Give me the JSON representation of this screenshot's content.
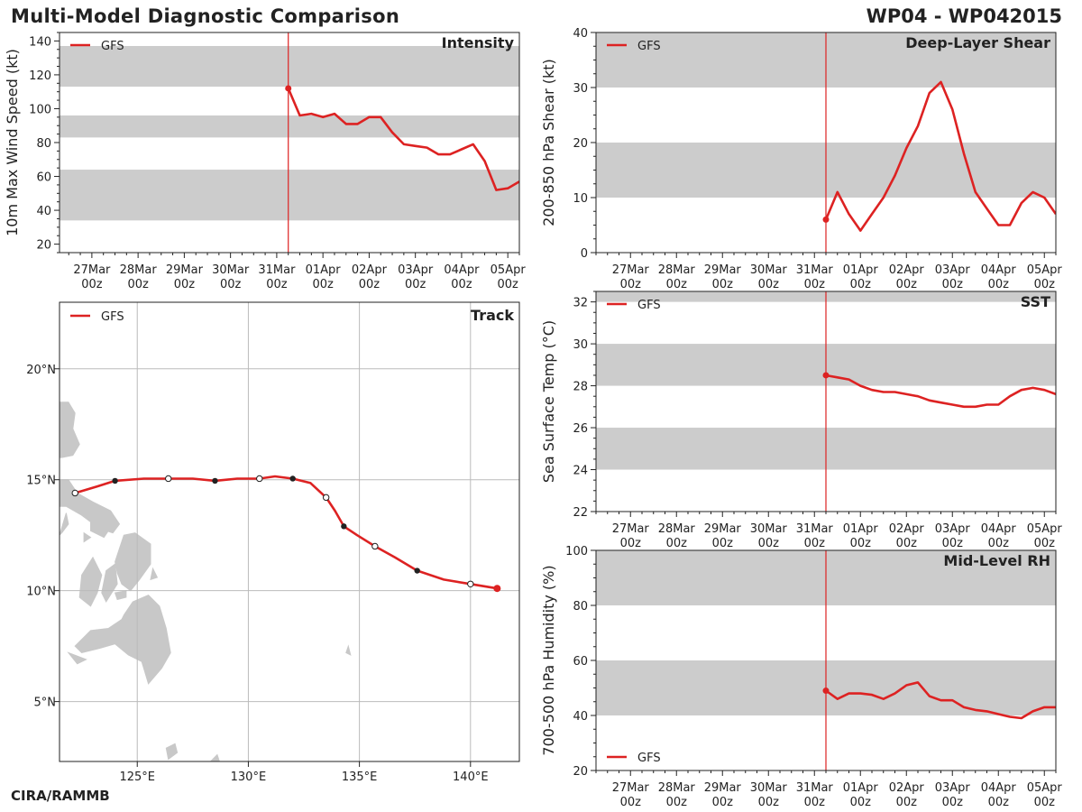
{
  "header": {
    "title": "Multi-Model Diagnostic Comparison",
    "storm": "WP04 - WP042015"
  },
  "footer": {
    "credit": "CIRA/RAMMB"
  },
  "time_axis": {
    "ticks": [
      {
        "day": 0,
        "l1": "27Mar",
        "l2": "00z"
      },
      {
        "day": 1,
        "l1": "28Mar",
        "l2": "00z"
      },
      {
        "day": 2,
        "l1": "29Mar",
        "l2": "00z"
      },
      {
        "day": 3,
        "l1": "30Mar",
        "l2": "00z"
      },
      {
        "day": 4,
        "l1": "31Mar",
        "l2": "00z"
      },
      {
        "day": 5,
        "l1": "01Apr",
        "l2": "00z"
      },
      {
        "day": 6,
        "l1": "02Apr",
        "l2": "00z"
      },
      {
        "day": 7,
        "l1": "03Apr",
        "l2": "00z"
      },
      {
        "day": 8,
        "l1": "04Apr",
        "l2": "00z"
      },
      {
        "day": 9,
        "l1": "05Apr",
        "l2": "00z"
      }
    ]
  },
  "chart_data": [
    {
      "id": "intensity",
      "type": "line",
      "title": "Intensity",
      "ylabel": "10m Max Wind Speed (kt)",
      "xlim": [
        -0.7,
        9.25
      ],
      "ylim": [
        15,
        145
      ],
      "yticks": [
        20,
        40,
        60,
        80,
        100,
        120,
        140
      ],
      "bands": [
        [
          34,
          64
        ],
        [
          83,
          96
        ],
        [
          113,
          137
        ]
      ],
      "init_day": 4.25,
      "legend": "top-left",
      "series": [
        {
          "name": "GFS",
          "color": "#dd2222",
          "x": [
            4.25,
            4.5,
            4.75,
            5.0,
            5.25,
            5.5,
            5.75,
            6.0,
            6.25,
            6.5,
            6.75,
            7.0,
            7.25,
            7.5,
            7.75,
            8.0,
            8.25,
            8.5,
            8.75,
            9.0,
            9.25
          ],
          "y": [
            112,
            96,
            97,
            95,
            97,
            91,
            91,
            95,
            95,
            86,
            79,
            78,
            77,
            73,
            73,
            76,
            79,
            69,
            52,
            53,
            57
          ]
        }
      ]
    },
    {
      "id": "shear",
      "type": "line",
      "title": "Deep-Layer Shear",
      "ylabel": "200-850 hPa Shear (kt)",
      "xlim": [
        -0.75,
        9.25
      ],
      "ylim": [
        0,
        40
      ],
      "yticks": [
        0,
        10,
        20,
        30,
        40
      ],
      "bands": [
        [
          10,
          20
        ],
        [
          30,
          40
        ]
      ],
      "init_day": 4.25,
      "legend": "top-left",
      "series": [
        {
          "name": "GFS",
          "color": "#dd2222",
          "x": [
            4.25,
            4.5,
            4.75,
            5.0,
            5.25,
            5.5,
            5.75,
            6.0,
            6.25,
            6.5,
            6.75,
            7.0,
            7.25,
            7.5,
            7.75,
            8.0,
            8.25,
            8.5,
            8.75,
            9.0,
            9.25
          ],
          "y": [
            6,
            11,
            7,
            4,
            7,
            10,
            14,
            19,
            23,
            29,
            31,
            26,
            18,
            11,
            8,
            5,
            5,
            9,
            11,
            10,
            7
          ]
        }
      ]
    },
    {
      "id": "sst",
      "type": "line",
      "title": "SST",
      "ylabel": "Sea Surface Temp (°C)",
      "xlim": [
        -0.75,
        9.25
      ],
      "ylim": [
        22,
        32.5
      ],
      "yticks": [
        22,
        24,
        26,
        28,
        30,
        32
      ],
      "bands": [
        [
          24,
          26
        ],
        [
          28,
          30
        ],
        [
          32,
          32.5
        ]
      ],
      "init_day": 4.25,
      "legend": "top-left",
      "series": [
        {
          "name": "GFS",
          "color": "#dd2222",
          "x": [
            4.25,
            4.5,
            4.75,
            5.0,
            5.25,
            5.5,
            5.75,
            6.0,
            6.25,
            6.5,
            6.75,
            7.0,
            7.25,
            7.5,
            7.75,
            8.0,
            8.25,
            8.5,
            8.75,
            9.0,
            9.25
          ],
          "y": [
            28.5,
            28.4,
            28.3,
            28.0,
            27.8,
            27.7,
            27.7,
            27.6,
            27.5,
            27.3,
            27.2,
            27.1,
            27.0,
            27.0,
            27.1,
            27.1,
            27.5,
            27.8,
            27.9,
            27.8,
            27.6
          ]
        }
      ]
    },
    {
      "id": "rh",
      "type": "line",
      "title": "Mid-Level RH",
      "ylabel": "700-500 hPa Humidity (%)",
      "xlim": [
        -0.75,
        9.25
      ],
      "ylim": [
        20,
        100
      ],
      "yticks": [
        20,
        40,
        60,
        80,
        100
      ],
      "bands": [
        [
          40,
          60
        ],
        [
          80,
          100
        ]
      ],
      "init_day": 4.25,
      "legend": "bottom-left",
      "series": [
        {
          "name": "GFS",
          "color": "#dd2222",
          "x": [
            4.25,
            4.5,
            4.75,
            5.0,
            5.25,
            5.5,
            5.75,
            6.0,
            6.25,
            6.5,
            6.75,
            7.0,
            7.25,
            7.5,
            7.75,
            8.0,
            8.25,
            8.5,
            8.75,
            9.0,
            9.25
          ],
          "y": [
            49,
            46,
            48,
            48,
            47.5,
            46,
            48,
            51,
            52,
            47,
            45.5,
            45.5,
            43,
            42,
            41.5,
            40.5,
            39.5,
            39,
            41.5,
            43,
            43
          ]
        }
      ]
    },
    {
      "id": "track",
      "type": "scatter",
      "title": "Track",
      "xlim": [
        121.5,
        142.2
      ],
      "ylim": [
        2.3,
        23.0
      ],
      "xticks": [
        125,
        130,
        135,
        140
      ],
      "xticklabels": [
        "125°E",
        "130°E",
        "135°E",
        "140°E"
      ],
      "yticks": [
        5,
        10,
        15,
        20
      ],
      "yticklabels": [
        "5°N",
        "10°N",
        "15°N",
        "20°N"
      ],
      "legend": "top-left",
      "series": [
        {
          "name": "GFS",
          "color": "#dd2222",
          "lon": [
            141.2,
            140.0,
            138.8,
            137.6,
            136.6,
            135.7,
            134.9,
            134.3,
            133.9,
            133.5,
            132.8,
            132.0,
            131.2,
            130.5,
            129.5,
            128.5,
            127.5,
            126.4,
            125.3,
            124.0,
            123.2,
            122.2
          ],
          "lat": [
            10.1,
            10.3,
            10.5,
            10.9,
            11.5,
            12.0,
            12.5,
            12.9,
            13.6,
            14.2,
            14.85,
            15.05,
            15.15,
            15.05,
            15.05,
            14.95,
            15.05,
            15.05,
            15.05,
            14.95,
            14.7,
            14.4
          ],
          "markers": [
            {
              "i": 0,
              "type": "init"
            },
            {
              "i": 1,
              "type": "open"
            },
            {
              "i": 3,
              "type": "filled"
            },
            {
              "i": 5,
              "type": "open"
            },
            {
              "i": 7,
              "type": "filled"
            },
            {
              "i": 9,
              "type": "open"
            },
            {
              "i": 11,
              "type": "filled"
            },
            {
              "i": 13,
              "type": "open"
            },
            {
              "i": 15,
              "type": "filled"
            },
            {
              "i": 17,
              "type": "open"
            },
            {
              "i": 19,
              "type": "filled"
            },
            {
              "i": 21,
              "type": "open"
            }
          ]
        }
      ],
      "land": [
        [
          [
            121.5,
            18.5
          ],
          [
            121.9,
            18.5
          ],
          [
            122.2,
            18.0
          ],
          [
            122.1,
            17.3
          ],
          [
            122.4,
            16.6
          ],
          [
            122.1,
            16.1
          ],
          [
            121.6,
            16.0
          ],
          [
            121.5,
            16.0
          ]
        ],
        [
          [
            121.5,
            15.0
          ],
          [
            121.9,
            15.0
          ],
          [
            122.3,
            14.4
          ],
          [
            123.0,
            14.0
          ],
          [
            123.8,
            13.6
          ],
          [
            124.2,
            13.0
          ],
          [
            123.9,
            12.6
          ],
          [
            123.3,
            12.8
          ],
          [
            122.5,
            13.4
          ],
          [
            121.8,
            13.8
          ],
          [
            121.5,
            13.8
          ]
        ],
        [
          [
            124.0,
            11.3
          ],
          [
            124.2,
            11.9
          ],
          [
            124.4,
            12.5
          ],
          [
            124.9,
            12.6
          ],
          [
            125.6,
            12.1
          ],
          [
            125.6,
            11.2
          ],
          [
            125.1,
            10.5
          ],
          [
            124.7,
            10.0
          ],
          [
            124.3,
            10.3
          ],
          [
            124.1,
            10.8
          ]
        ],
        [
          [
            124.4,
            8.9
          ],
          [
            124.8,
            9.5
          ],
          [
            125.5,
            9.8
          ],
          [
            126.0,
            9.3
          ],
          [
            126.3,
            8.3
          ],
          [
            126.5,
            7.2
          ],
          [
            126.1,
            6.5
          ],
          [
            125.5,
            5.8
          ],
          [
            125.2,
            6.8
          ],
          [
            124.6,
            7.1
          ],
          [
            124.0,
            7.6
          ],
          [
            123.3,
            7.4
          ],
          [
            122.5,
            7.2
          ],
          [
            122.2,
            7.5
          ],
          [
            122.9,
            8.2
          ],
          [
            123.7,
            8.3
          ],
          [
            124.3,
            8.7
          ]
        ],
        [
          [
            122.5,
            10.7
          ],
          [
            123.0,
            11.5
          ],
          [
            123.4,
            10.7
          ],
          [
            123.2,
            9.9
          ],
          [
            122.9,
            9.3
          ],
          [
            122.4,
            9.7
          ]
        ],
        [
          [
            123.6,
            10.9
          ],
          [
            124.0,
            11.2
          ],
          [
            124.1,
            10.3
          ],
          [
            123.6,
            9.5
          ],
          [
            123.4,
            9.9
          ]
        ],
        [
          [
            124.0,
            9.9
          ],
          [
            124.5,
            10.0
          ],
          [
            124.5,
            9.7
          ],
          [
            124.1,
            9.6
          ]
        ],
        [
          [
            121.8,
            13.5
          ],
          [
            121.9,
            13.0
          ],
          [
            121.6,
            12.6
          ],
          [
            121.5,
            12.5
          ]
        ],
        [
          [
            122.9,
            13.1
          ],
          [
            123.7,
            12.7
          ],
          [
            123.5,
            12.4
          ],
          [
            122.9,
            12.7
          ]
        ],
        [
          [
            122.6,
            12.6
          ],
          [
            122.9,
            12.4
          ],
          [
            122.6,
            12.2
          ]
        ],
        [
          [
            121.9,
            7.2
          ],
          [
            122.7,
            6.9
          ],
          [
            122.3,
            6.7
          ]
        ],
        [
          [
            125.7,
            11.0
          ],
          [
            125.9,
            10.6
          ],
          [
            125.6,
            10.5
          ]
        ],
        [
          [
            126.3,
            2.9
          ],
          [
            126.7,
            3.1
          ],
          [
            126.8,
            2.7
          ],
          [
            126.4,
            2.4
          ]
        ],
        [
          [
            134.5,
            7.5
          ],
          [
            134.6,
            7.1
          ],
          [
            134.4,
            7.2
          ]
        ],
        [
          [
            128.3,
            2.3
          ],
          [
            128.6,
            2.6
          ],
          [
            128.7,
            2.3
          ]
        ]
      ]
    }
  ]
}
